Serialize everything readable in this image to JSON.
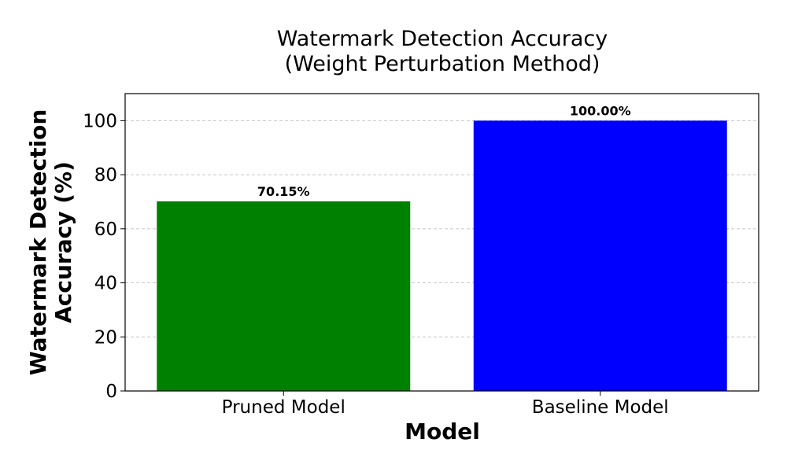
{
  "chart_data": {
    "type": "bar",
    "title_line1": "Watermark Detection Accuracy",
    "title_line2": "(Weight Perturbation Method)",
    "xlabel": "Model",
    "ylabel_line1": "Watermark Detection",
    "ylabel_line2": "Accuracy (%)",
    "categories": [
      "Pruned Model",
      "Baseline Model"
    ],
    "values": [
      70.15,
      100.0
    ],
    "value_labels": [
      "70.15%",
      "100.00%"
    ],
    "colors": [
      "#008000",
      "#0000ff"
    ],
    "ylim": [
      0,
      110
    ],
    "yticks": [
      0,
      20,
      40,
      60,
      80,
      100
    ],
    "grid": "horizontal-dashed",
    "legend": "none"
  }
}
